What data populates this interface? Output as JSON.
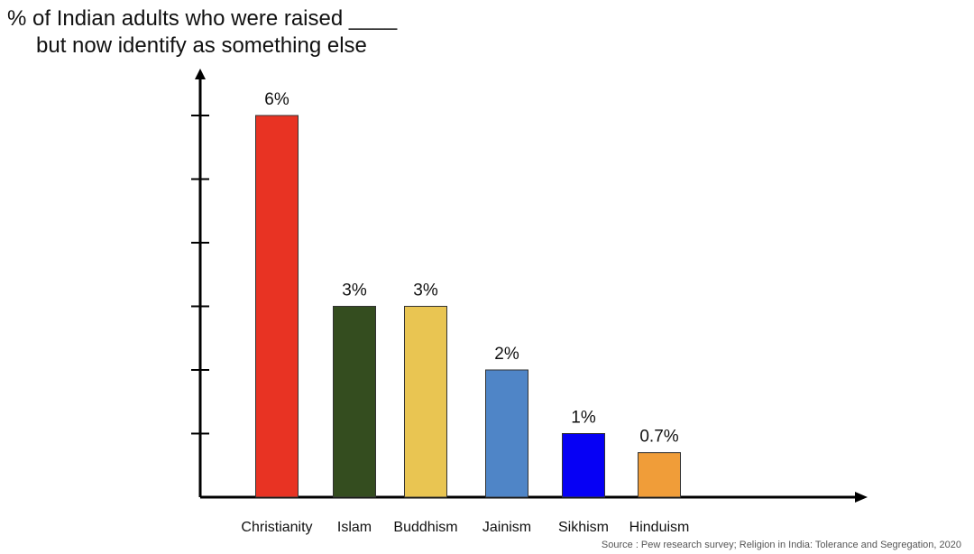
{
  "chart_data": {
    "type": "bar",
    "title_line1": "% of Indian adults who were raised ____",
    "title_line2": "but now identify as something else",
    "categories": [
      "Christianity",
      "Islam",
      "Buddhism",
      "Jainism",
      "Sikhism",
      "Hinduism"
    ],
    "values": [
      6,
      3,
      3,
      2,
      1,
      0.7
    ],
    "value_labels": [
      "6%",
      "3%",
      "3%",
      "2%",
      "1%",
      "0.7%"
    ],
    "colors": [
      "#e83323",
      "#344d1f",
      "#e9c552",
      "#4f85c7",
      "#0600f5",
      "#f09d39"
    ],
    "ylim": [
      0,
      6
    ],
    "yticks": [
      1,
      2,
      3,
      4,
      5,
      6
    ],
    "xlabel": "",
    "ylabel": "",
    "grid": false,
    "legend": "none",
    "source": "Source : Pew research survey; Religion in India: Tolerance and Segregation, 2020"
  }
}
